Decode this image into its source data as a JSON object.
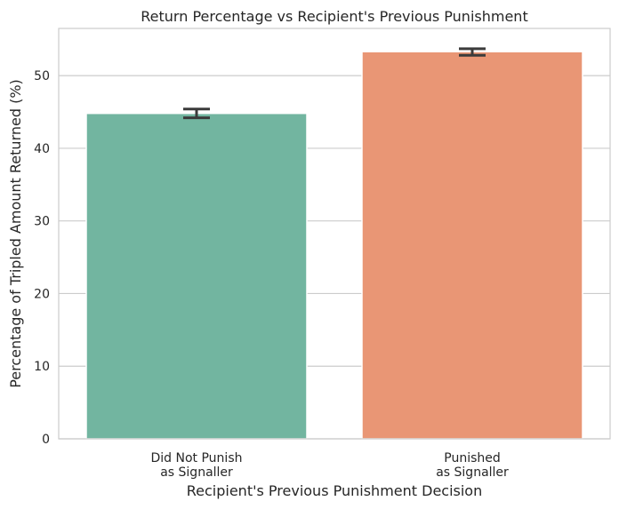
{
  "chart_data": {
    "type": "bar",
    "title": "Return Percentage vs Recipient's Previous Punishment",
    "xlabel": "Recipient's Previous Punishment Decision",
    "ylabel": "Percentage of Tripled Amount Returned (%)",
    "categories": [
      [
        "Did Not Punish",
        "as Signaller"
      ],
      [
        "Punished",
        "as Signaller"
      ]
    ],
    "values": [
      44.8,
      53.3
    ],
    "error": [
      [
        44.2,
        45.4
      ],
      [
        52.8,
        53.7
      ]
    ],
    "colors": [
      "#72b5a0",
      "#e99675"
    ],
    "ylim": [
      0,
      56.5
    ],
    "yticks": [
      0,
      10,
      20,
      30,
      40,
      50
    ],
    "grid": true
  }
}
